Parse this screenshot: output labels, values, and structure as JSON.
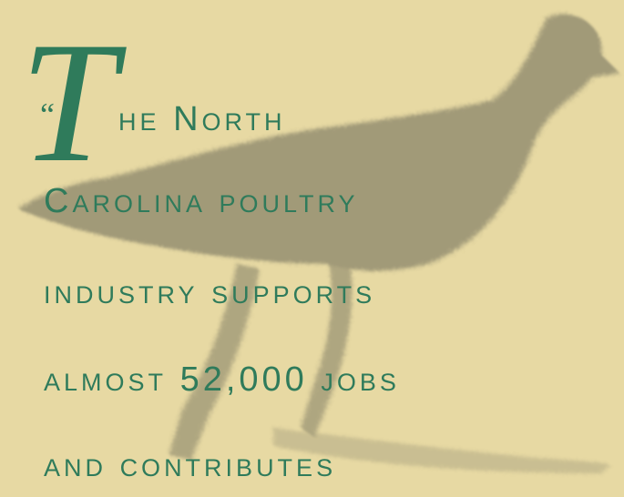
{
  "quote": {
    "open_mark": "“",
    "initial": "T",
    "lines": [
      "he North",
      "Carolina poultry",
      "industry supports",
      "almost 52,000 jobs",
      "and contributes"
    ]
  }
}
